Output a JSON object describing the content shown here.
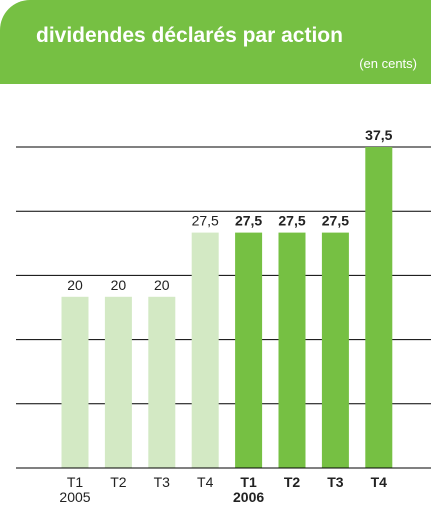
{
  "header": {
    "title": "dividendes déclarés par action",
    "subtitle": "(en cents)"
  },
  "colors": {
    "accent": "#76c043",
    "light_bar": "#d3e9c4",
    "dark_bar": "#76c043"
  },
  "chart_data": {
    "type": "bar",
    "title": "dividendes déclarés par action",
    "subtitle": "(en cents)",
    "categories": [
      "T1",
      "T2",
      "T3",
      "T4",
      "T1",
      "T2",
      "T3",
      "T4"
    ],
    "year_labels": [
      "2005",
      "",
      "",
      "",
      "2006",
      "",
      "",
      ""
    ],
    "values": [
      20,
      20,
      20,
      27.5,
      27.5,
      27.5,
      27.5,
      37.5
    ],
    "value_labels": [
      "20",
      "20",
      "20",
      "27,5",
      "27,5",
      "27,5",
      "27,5",
      "37,5"
    ],
    "emphasis": [
      false,
      false,
      false,
      false,
      true,
      true,
      true,
      true
    ],
    "ylim": [
      0,
      37.5
    ],
    "grid": true,
    "xlabel": "",
    "ylabel": ""
  }
}
